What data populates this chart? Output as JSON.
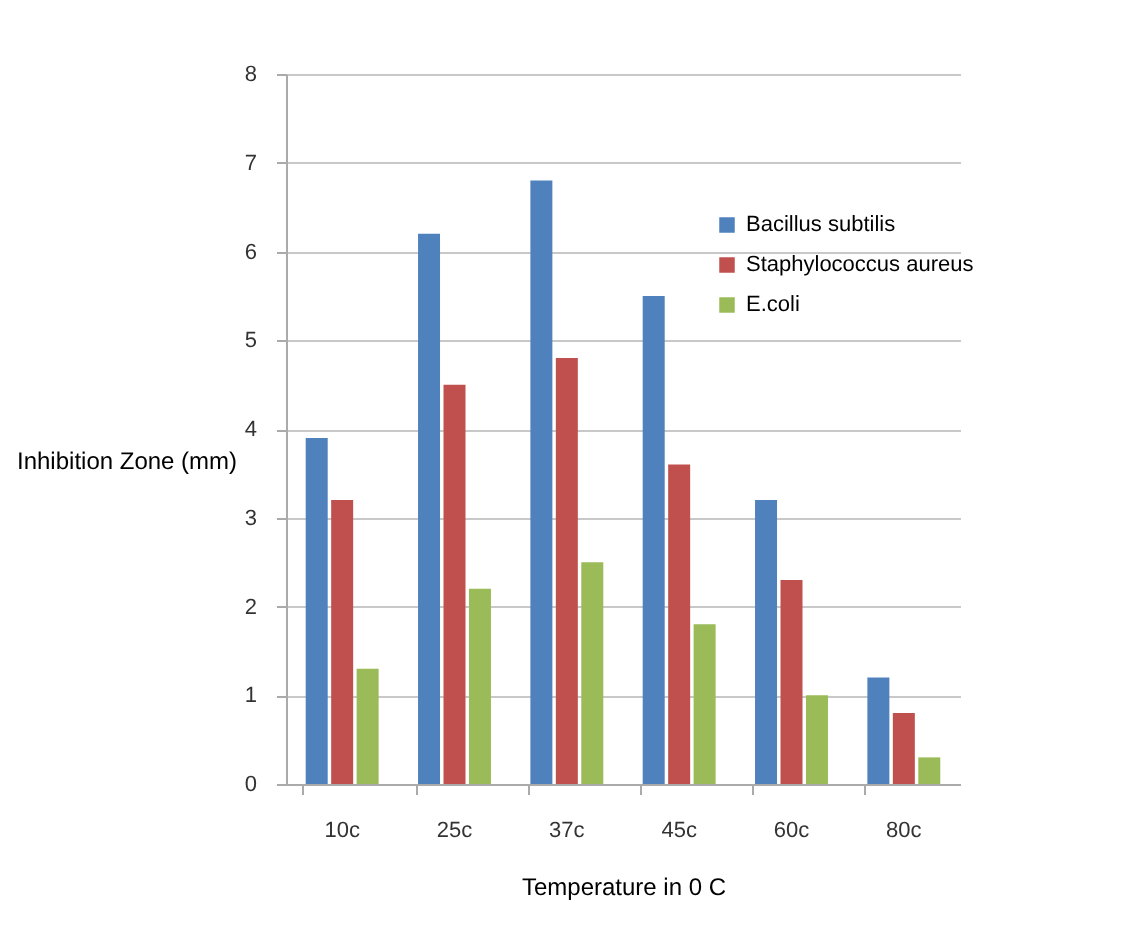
{
  "chart_data": {
    "type": "bar",
    "xlabel": "Temperature in 0 C",
    "ylabel": "Inhibition Zone (mm)",
    "categories": [
      "10c",
      "25c",
      "37c",
      "45c",
      "60c",
      "80c"
    ],
    "series": [
      {
        "name": "Bacillus subtilis",
        "color": "#4f81bd",
        "values": [
          3.9,
          6.2,
          6.8,
          5.5,
          3.2,
          1.2
        ]
      },
      {
        "name": "Staphylococcus aureus",
        "color": "#c0504d",
        "values": [
          3.2,
          4.5,
          4.8,
          3.6,
          2.3,
          0.8
        ]
      },
      {
        "name": "E.coli",
        "color": "#9bbb59",
        "values": [
          1.3,
          2.2,
          2.5,
          1.8,
          1.0,
          0.3
        ]
      }
    ],
    "ylim": [
      0,
      8
    ],
    "yticks": [
      0,
      1,
      2,
      3,
      4,
      5,
      6,
      7,
      8
    ],
    "grid": "y",
    "legend": "right"
  }
}
